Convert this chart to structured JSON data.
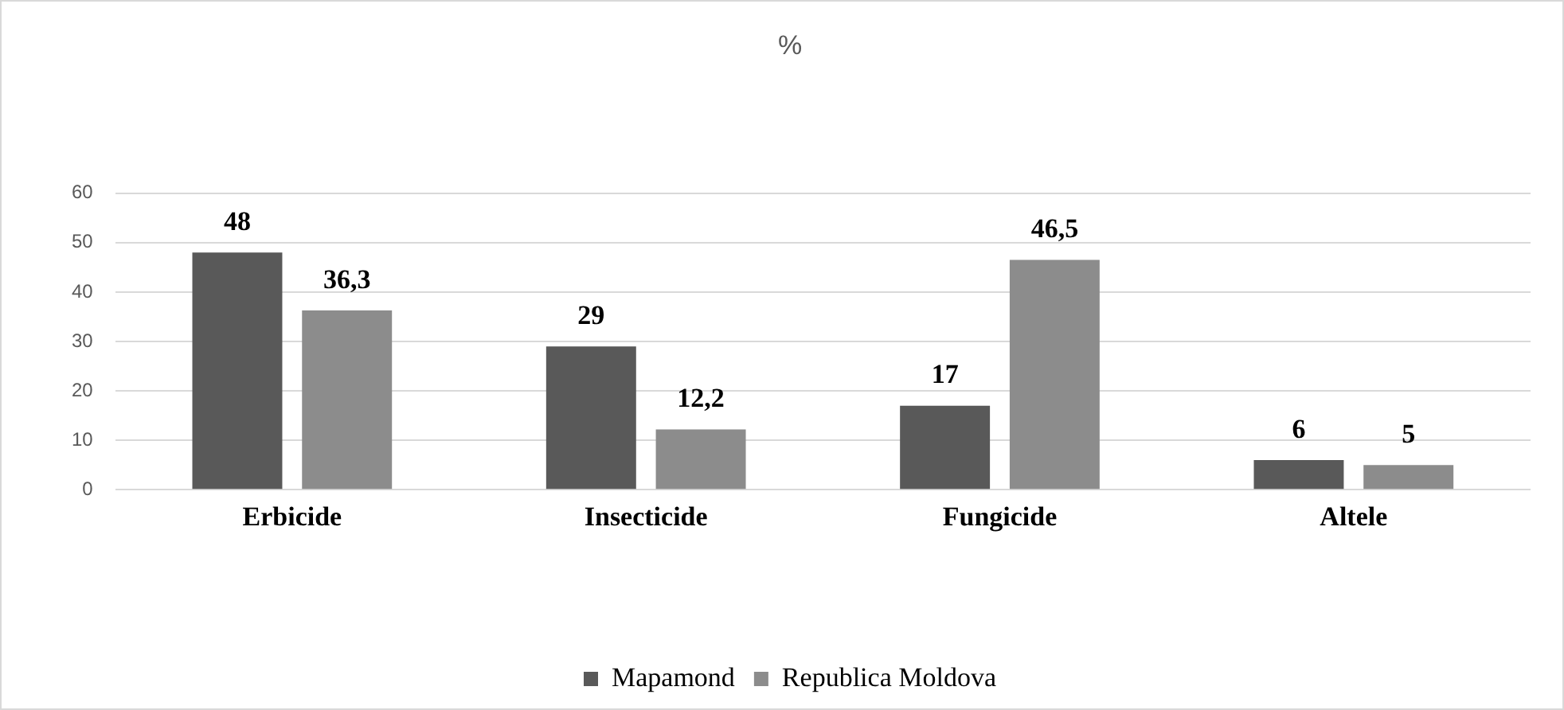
{
  "chart_data": {
    "type": "bar",
    "title": "%",
    "categories": [
      "Erbicide",
      "Insecticide",
      "Fungicide",
      "Altele"
    ],
    "series": [
      {
        "name": "Mapamond",
        "color": "#595959",
        "values": [
          48,
          29,
          17,
          6
        ],
        "value_labels": [
          "48",
          "29",
          "17",
          "6"
        ]
      },
      {
        "name": "Republica Moldova",
        "color": "#8c8c8c",
        "values": [
          36.3,
          12.2,
          46.5,
          5
        ],
        "value_labels": [
          "36,3",
          "12,2",
          "46,5",
          "5"
        ]
      }
    ],
    "ylim": [
      0,
      60
    ],
    "yticks": [
      0,
      10,
      20,
      30,
      40,
      50,
      60
    ],
    "grid": "y",
    "legend": "bottom"
  }
}
